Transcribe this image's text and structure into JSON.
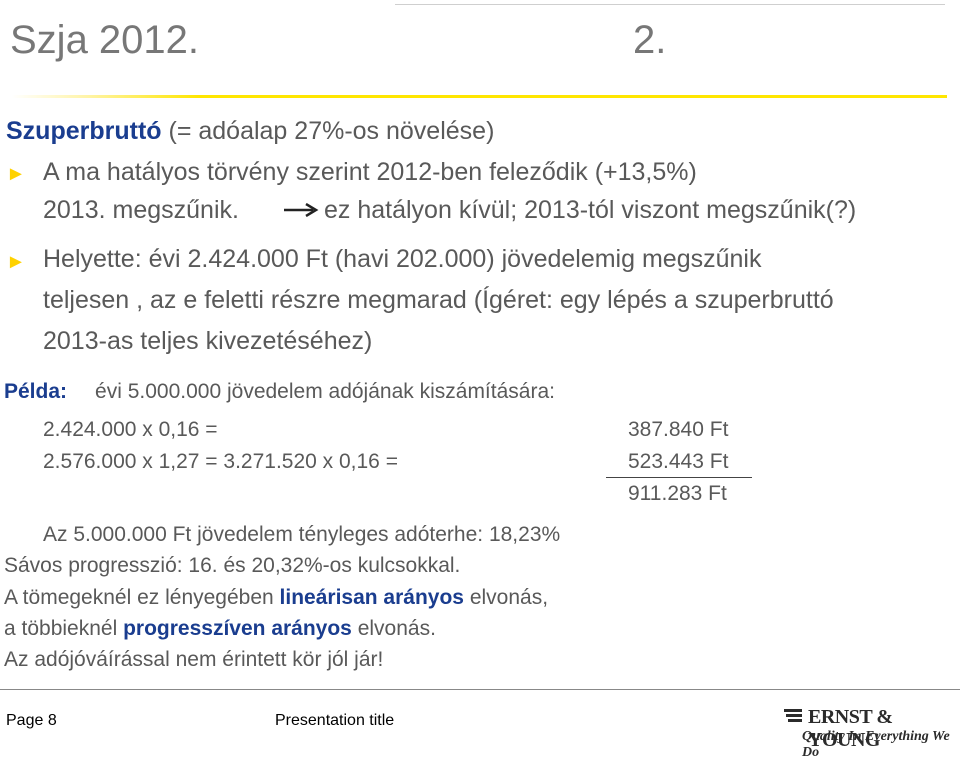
{
  "header": {
    "title": "Szja 2012.",
    "slide_number": "2."
  },
  "section": {
    "heading_bold": "Szuperbruttó",
    "heading_rest": " (= adóalap 27%-os növelése)"
  },
  "bullets": [
    {
      "text": "A ma hatályos törvény szerint 2012-ben feleződik  (+13,5%)"
    },
    {
      "line2_start": "2013. megszűnik.",
      "line2_end": "ez hatályon kívül; 2013-tól viszont megszűnik(?)"
    },
    {
      "lines": [
        "Helyette: évi 2.424.000 Ft (havi 202.000) jövedelemig megszűnik",
        "teljesen , az e feletti részre megmarad (Ígéret: egy lépés a szuperbruttó",
        "2013-as teljes kivezetéséhez)"
      ]
    }
  ],
  "example": {
    "label": "Példa:",
    "desc": "évi 5.000.000 jövedelem  adójának kiszámítására:",
    "calc": [
      {
        "expr": "2.424.000 x 0,16 =",
        "result": "387.840 Ft"
      },
      {
        "expr": "2.576.000 x 1,27 = 3.271.520 x 0,16 =",
        "result": "523.443 Ft"
      }
    ],
    "total": "911.283 Ft",
    "summary": "Az 5.000.000 Ft jövedelem tényleges adóterhe: 18,23%"
  },
  "conclusion": {
    "line1": "Sávos progresszió: 16. és 20,32%-os kulcsokkal.",
    "line2_a": "A tömegeknél ez lényegében ",
    "line2_b": "lineárisan arányos",
    "line2_c": " elvonás,",
    "line3_a": "a többieknél ",
    "line3_b": "progresszíven arányos",
    "line3_c": " elvonás.",
    "line4": "Az adójóváírással nem érintett kör jól jár!"
  },
  "footer": {
    "page": "Page 8",
    "presentation_title": "Presentation title",
    "logo_name": "ERNST & YOUNG",
    "logo_tagline": "Quality In Everything We Do"
  },
  "colors": {
    "accent_yellow": "#ffe600",
    "heading_blue": "#1a3d8f",
    "bullet_yellow": "#ffd200"
  },
  "icons": [
    "bullet-arrow-icon",
    "right-arrow-icon"
  ]
}
